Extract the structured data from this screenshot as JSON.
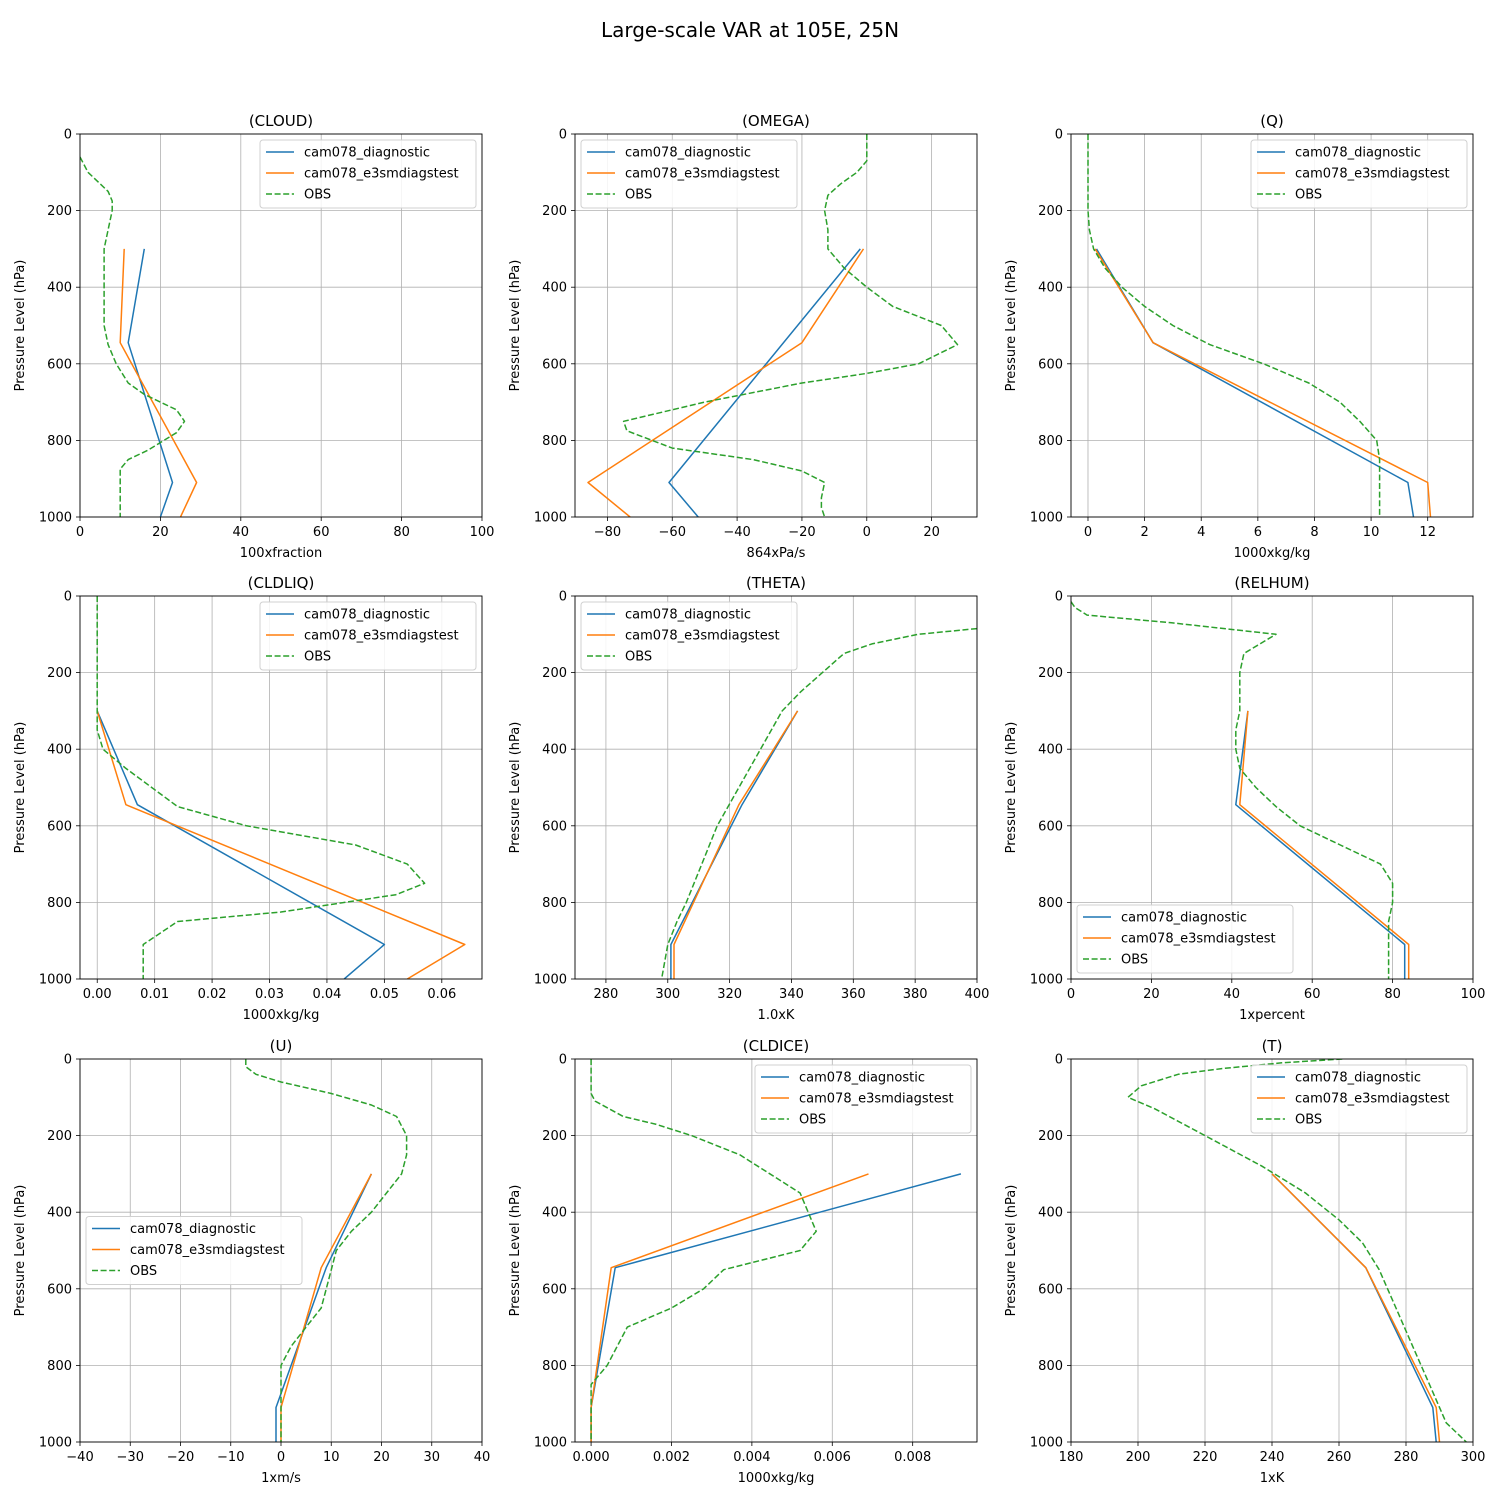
{
  "figure": {
    "title": "Large-scale VAR at 105E, 25N"
  },
  "colors": {
    "cam078_diagnostic": "#1f77b4",
    "cam078_e3smdiagstest": "#ff7f0e",
    "OBS": "#2ca02c",
    "grid": "#b0b0b0"
  },
  "chart_data": [
    {
      "type": "line",
      "title": "(CLOUD)",
      "xlabel": "100xfraction",
      "ylabel": "Pressure Level (hPa)",
      "xlim": [
        0,
        100
      ],
      "ylim": [
        1000,
        0
      ],
      "grid": true,
      "legend": "upper-right",
      "xticks": [
        0,
        20,
        40,
        60,
        80,
        100
      ],
      "xtick_labels": [
        "0",
        "20",
        "40",
        "60",
        "80",
        "100"
      ],
      "yticks": [
        0,
        200,
        400,
        600,
        800,
        1000
      ],
      "ytick_labels": [
        "0",
        "200",
        "400",
        "600",
        "800",
        "1000"
      ],
      "series": [
        {
          "name": "cam078_diagnostic",
          "style": "solid",
          "x": [
            16,
            12,
            23,
            20
          ],
          "y": [
            300,
            545,
            910,
            1000
          ]
        },
        {
          "name": "cam078_e3smdiagstest",
          "style": "solid",
          "x": [
            11,
            10,
            29,
            25
          ],
          "y": [
            300,
            545,
            910,
            1000
          ]
        },
        {
          "name": "OBS",
          "style": "dashed",
          "x": [
            0,
            1,
            2,
            5,
            7,
            8,
            8,
            7,
            6,
            6,
            6,
            6,
            6,
            7,
            9,
            12,
            16,
            20,
            24,
            26,
            24,
            17,
            12,
            10,
            10,
            10,
            10
          ],
          "y": [
            60,
            80,
            100,
            130,
            150,
            175,
            200,
            250,
            300,
            350,
            400,
            450,
            500,
            550,
            600,
            650,
            680,
            700,
            720,
            750,
            780,
            825,
            850,
            875,
            910,
            950,
            1000
          ]
        }
      ]
    },
    {
      "type": "line",
      "title": "(OMEGA)",
      "xlabel": "864xPa/s",
      "ylabel": "Pressure Level (hPa)",
      "xlim": [
        -90,
        34
      ],
      "ylim": [
        1000,
        0
      ],
      "grid": true,
      "legend": "upper-left",
      "xticks": [
        -80,
        -60,
        -40,
        -20,
        0,
        20
      ],
      "xtick_labels": [
        "−80",
        "−60",
        "−40",
        "−20",
        "0",
        "20"
      ],
      "yticks": [
        0,
        200,
        400,
        600,
        800,
        1000
      ],
      "ytick_labels": [
        "0",
        "200",
        "400",
        "600",
        "800",
        "1000"
      ],
      "series": [
        {
          "name": "cam078_diagnostic",
          "style": "solid",
          "x": [
            -2,
            -61,
            -52
          ],
          "y": [
            300,
            910,
            1000
          ]
        },
        {
          "name": "cam078_e3smdiagstest",
          "style": "solid",
          "x": [
            -1,
            -20,
            -86,
            -73
          ],
          "y": [
            300,
            545,
            910,
            1000
          ]
        },
        {
          "name": "OBS",
          "style": "dashed",
          "x": [
            0,
            0,
            0,
            -3,
            -8,
            -12,
            -13,
            -12,
            -12,
            -7,
            0,
            8,
            23,
            28,
            16,
            0,
            -20,
            -50,
            -75,
            -74,
            -60,
            -35,
            -20,
            -13,
            -14,
            -14,
            -13
          ],
          "y": [
            0,
            50,
            70,
            100,
            130,
            160,
            200,
            250,
            300,
            350,
            400,
            450,
            500,
            550,
            600,
            625,
            650,
            700,
            750,
            775,
            820,
            850,
            880,
            910,
            950,
            975,
            1000
          ]
        }
      ]
    },
    {
      "type": "line",
      "title": "(Q)",
      "xlabel": "1000xkg/kg",
      "ylabel": "Pressure Level (hPa)",
      "xlim": [
        -0.6,
        13.6
      ],
      "ylim": [
        1000,
        0
      ],
      "grid": true,
      "legend": "upper-right",
      "xticks": [
        0,
        2,
        4,
        6,
        8,
        10,
        12
      ],
      "xtick_labels": [
        "0",
        "2",
        "4",
        "6",
        "8",
        "10",
        "12"
      ],
      "yticks": [
        0,
        200,
        400,
        600,
        800,
        1000
      ],
      "ytick_labels": [
        "0",
        "200",
        "400",
        "600",
        "800",
        "1000"
      ],
      "series": [
        {
          "name": "cam078_diagnostic",
          "style": "solid",
          "x": [
            0.3,
            2.3,
            11.3,
            11.5
          ],
          "y": [
            300,
            545,
            910,
            1000
          ]
        },
        {
          "name": "cam078_e3smdiagstest",
          "style": "solid",
          "x": [
            0.25,
            2.3,
            12.0,
            12.1
          ],
          "y": [
            300,
            545,
            910,
            1000
          ]
        },
        {
          "name": "OBS",
          "style": "dashed",
          "x": [
            0,
            0,
            0,
            0,
            0.05,
            0.2,
            0.6,
            1.2,
            2.0,
            3.0,
            4.3,
            6.2,
            7.8,
            8.9,
            9.6,
            10.2,
            10.3,
            10.3,
            10.3
          ],
          "y": [
            0,
            100,
            150,
            200,
            250,
            300,
            350,
            400,
            450,
            500,
            550,
            600,
            650,
            700,
            750,
            800,
            850,
            910,
            1000
          ]
        }
      ]
    },
    {
      "type": "line",
      "title": "(CLDLIQ)",
      "xlabel": "1000xkg/kg",
      "ylabel": "Pressure Level (hPa)",
      "xlim": [
        -0.003,
        0.067
      ],
      "ylim": [
        1000,
        0
      ],
      "grid": true,
      "legend": "upper-right",
      "xticks": [
        0,
        0.01,
        0.02,
        0.03,
        0.04,
        0.05,
        0.06
      ],
      "xtick_labels": [
        "0.00",
        "0.01",
        "0.02",
        "0.03",
        "0.04",
        "0.05",
        "0.06"
      ],
      "yticks": [
        0,
        200,
        400,
        600,
        800,
        1000
      ],
      "ytick_labels": [
        "0",
        "200",
        "400",
        "600",
        "800",
        "1000"
      ],
      "series": [
        {
          "name": "cam078_diagnostic",
          "style": "solid",
          "x": [
            0,
            0.007,
            0.05,
            0.043
          ],
          "y": [
            300,
            545,
            910,
            1000
          ]
        },
        {
          "name": "cam078_e3smdiagstest",
          "style": "solid",
          "x": [
            0,
            0.005,
            0.064,
            0.054
          ],
          "y": [
            300,
            545,
            910,
            1000
          ]
        },
        {
          "name": "OBS",
          "style": "dashed",
          "x": [
            0,
            0,
            0,
            0,
            0,
            0.001,
            0.005,
            0.014,
            0.026,
            0.045,
            0.054,
            0.057,
            0.052,
            0.032,
            0.014,
            0.009,
            0.008,
            0.008,
            0.008
          ],
          "y": [
            0,
            100,
            200,
            300,
            350,
            400,
            450,
            550,
            600,
            650,
            700,
            750,
            780,
            825,
            850,
            900,
            910,
            950,
            1000
          ]
        }
      ]
    },
    {
      "type": "line",
      "title": "(THETA)",
      "xlabel": "1.0xK",
      "ylabel": "Pressure Level (hPa)",
      "xlim": [
        270,
        400
      ],
      "ylim": [
        1000,
        0
      ],
      "grid": true,
      "legend": "upper-left",
      "xticks": [
        280,
        300,
        320,
        340,
        360,
        380,
        400
      ],
      "xtick_labels": [
        "280",
        "300",
        "320",
        "340",
        "360",
        "380",
        "400"
      ],
      "yticks": [
        0,
        200,
        400,
        600,
        800,
        1000
      ],
      "ytick_labels": [
        "0",
        "200",
        "400",
        "600",
        "800",
        "1000"
      ],
      "series": [
        {
          "name": "cam078_diagnostic",
          "style": "solid",
          "x": [
            342,
            324,
            301,
            301
          ],
          "y": [
            300,
            545,
            910,
            1000
          ]
        },
        {
          "name": "cam078_e3smdiagstest",
          "style": "solid",
          "x": [
            342,
            323,
            302,
            302
          ],
          "y": [
            300,
            545,
            910,
            1000
          ]
        },
        {
          "name": "OBS",
          "style": "dashed",
          "x": [
            400,
            381,
            366,
            357,
            350,
            343,
            337,
            330,
            323,
            316,
            311,
            306,
            303,
            300,
            298
          ],
          "y": [
            85,
            100,
            125,
            150,
            200,
            250,
            300,
            400,
            500,
            600,
            700,
            800,
            850,
            910,
            1000
          ]
        }
      ]
    },
    {
      "type": "line",
      "title": "(RELHUM)",
      "xlabel": "1xpercent",
      "ylabel": "Pressure Level (hPa)",
      "xlim": [
        0,
        100
      ],
      "ylim": [
        1000,
        0
      ],
      "grid": true,
      "legend": "lower-left",
      "xticks": [
        0,
        20,
        40,
        60,
        80,
        100
      ],
      "xtick_labels": [
        "0",
        "20",
        "40",
        "60",
        "80",
        "100"
      ],
      "yticks": [
        0,
        200,
        400,
        600,
        800,
        1000
      ],
      "ytick_labels": [
        "0",
        "200",
        "400",
        "600",
        "800",
        "1000"
      ],
      "series": [
        {
          "name": "cam078_diagnostic",
          "style": "solid",
          "x": [
            44,
            41,
            83,
            83
          ],
          "y": [
            300,
            545,
            910,
            1000
          ]
        },
        {
          "name": "cam078_e3smdiagstest",
          "style": "solid",
          "x": [
            44,
            42,
            84,
            84
          ],
          "y": [
            300,
            545,
            910,
            1000
          ]
        },
        {
          "name": "OBS",
          "style": "dashed",
          "x": [
            0,
            1,
            4,
            25,
            51,
            43,
            42,
            42,
            42,
            41,
            41,
            42,
            46,
            51,
            57,
            67,
            77,
            80,
            80,
            79,
            79,
            79,
            79
          ],
          "y": [
            15,
            30,
            50,
            70,
            100,
            150,
            200,
            250,
            300,
            350,
            400,
            450,
            500,
            550,
            600,
            650,
            700,
            750,
            800,
            850,
            910,
            950,
            1000
          ]
        }
      ]
    },
    {
      "type": "line",
      "title": "(U)",
      "xlabel": "1xm/s",
      "ylabel": "Pressure Level (hPa)",
      "xlim": [
        -40,
        40
      ],
      "ylim": [
        1000,
        0
      ],
      "grid": true,
      "legend": "center-left",
      "xticks": [
        -40,
        -30,
        -20,
        -10,
        0,
        10,
        20,
        30,
        40
      ],
      "xtick_labels": [
        "−40",
        "−30",
        "−20",
        "−10",
        "0",
        "10",
        "20",
        "30",
        "40"
      ],
      "yticks": [
        0,
        200,
        400,
        600,
        800,
        1000
      ],
      "ytick_labels": [
        "0",
        "200",
        "400",
        "600",
        "800",
        "1000"
      ],
      "series": [
        {
          "name": "cam078_diagnostic",
          "style": "solid",
          "x": [
            18,
            9,
            -1,
            -1
          ],
          "y": [
            300,
            545,
            910,
            1000
          ]
        },
        {
          "name": "cam078_e3smdiagstest",
          "style": "solid",
          "x": [
            18,
            8,
            0,
            0
          ],
          "y": [
            300,
            545,
            910,
            1000
          ]
        },
        {
          "name": "OBS",
          "style": "dashed",
          "x": [
            -7,
            -7,
            -5,
            0,
            10,
            18,
            23,
            25,
            25,
            24,
            21,
            18,
            14,
            11,
            10,
            8,
            5,
            2,
            0,
            0,
            0,
            0,
            0
          ],
          "y": [
            0,
            20,
            40,
            60,
            90,
            120,
            150,
            200,
            250,
            300,
            350,
            400,
            450,
            500,
            550,
            650,
            700,
            750,
            800,
            850,
            910,
            950,
            1000
          ]
        }
      ]
    },
    {
      "type": "line",
      "title": "(CLDICE)",
      "xlabel": "1000xkg/kg",
      "ylabel": "Pressure Level (hPa)",
      "xlim": [
        -0.0004,
        0.0096
      ],
      "ylim": [
        1000,
        0
      ],
      "grid": true,
      "legend": "upper-right",
      "xticks": [
        0,
        0.002,
        0.004,
        0.006,
        0.008
      ],
      "xtick_labels": [
        "0.000",
        "0.002",
        "0.004",
        "0.006",
        "0.008"
      ],
      "yticks": [
        0,
        200,
        400,
        600,
        800,
        1000
      ],
      "ytick_labels": [
        "0",
        "200",
        "400",
        "600",
        "800",
        "1000"
      ],
      "series": [
        {
          "name": "cam078_diagnostic",
          "style": "solid",
          "x": [
            0.0092,
            0.0006,
            0,
            0
          ],
          "y": [
            300,
            545,
            910,
            1000
          ]
        },
        {
          "name": "cam078_e3smdiagstest",
          "style": "solid",
          "x": [
            0.0069,
            0.0005,
            0,
            0
          ],
          "y": [
            300,
            545,
            910,
            1000
          ]
        },
        {
          "name": "OBS",
          "style": "dashed",
          "x": [
            0,
            0,
            0,
            0.0001,
            0.0008,
            0.0016,
            0.0025,
            0.0037,
            0.0052,
            0.0056,
            0.0052,
            0.0033,
            0.0028,
            0.002,
            0.0009,
            0.0006,
            0.0004,
            0,
            0,
            0,
            0
          ],
          "y": [
            0,
            50,
            90,
            110,
            150,
            170,
            200,
            250,
            350,
            450,
            500,
            550,
            600,
            650,
            700,
            760,
            800,
            850,
            910,
            950,
            1000
          ]
        }
      ]
    },
    {
      "type": "line",
      "title": "(T)",
      "xlabel": "1xK",
      "ylabel": "Pressure Level (hPa)",
      "xlim": [
        180,
        300
      ],
      "ylim": [
        1000,
        0
      ],
      "grid": true,
      "legend": "upper-right",
      "xticks": [
        180,
        200,
        220,
        240,
        260,
        280,
        300
      ],
      "xtick_labels": [
        "180",
        "200",
        "220",
        "240",
        "260",
        "280",
        "300"
      ],
      "yticks": [
        0,
        200,
        400,
        600,
        800,
        1000
      ],
      "ytick_labels": [
        "0",
        "200",
        "400",
        "600",
        "800",
        "1000"
      ],
      "series": [
        {
          "name": "cam078_diagnostic",
          "style": "solid",
          "x": [
            240,
            268,
            288,
            289
          ],
          "y": [
            300,
            545,
            910,
            1000
          ]
        },
        {
          "name": "cam078_e3smdiagstest",
          "style": "solid",
          "x": [
            240,
            268,
            289,
            290
          ],
          "y": [
            300,
            545,
            910,
            1000
          ]
        },
        {
          "name": "OBS",
          "style": "dashed",
          "x": [
            261,
            243,
            225,
            212,
            201,
            197,
            205,
            220,
            237,
            250,
            260,
            267,
            272,
            277,
            282,
            287,
            292,
            298
          ],
          "y": [
            0,
            10,
            25,
            40,
            70,
            100,
            130,
            200,
            280,
            350,
            420,
            480,
            550,
            650,
            750,
            850,
            950,
            1000
          ]
        }
      ]
    }
  ]
}
